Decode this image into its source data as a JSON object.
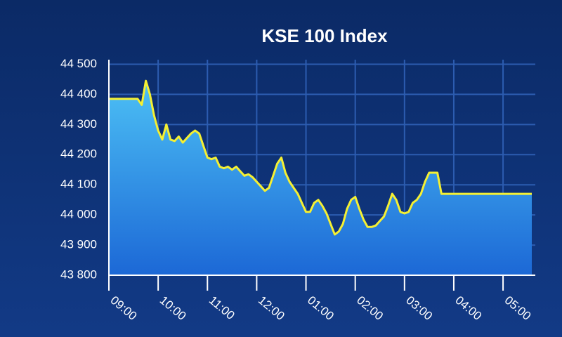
{
  "chart_data": {
    "type": "area",
    "title": "KSE 100 Index",
    "x": [
      "09:00",
      "09:35",
      "09:40",
      "09:45",
      "09:50",
      "09:55",
      "10:00",
      "10:05",
      "10:10",
      "10:15",
      "10:20",
      "10:25",
      "10:30",
      "10:35",
      "10:40",
      "10:45",
      "10:50",
      "10:55",
      "11:00",
      "11:05",
      "11:10",
      "11:15",
      "11:20",
      "11:25",
      "11:30",
      "11:35",
      "11:40",
      "11:45",
      "11:50",
      "11:55",
      "12:00",
      "12:05",
      "12:10",
      "12:15",
      "12:20",
      "12:25",
      "12:30",
      "12:35",
      "12:40",
      "12:45",
      "12:50",
      "12:55",
      "01:00",
      "01:05",
      "01:10",
      "01:15",
      "01:20",
      "01:25",
      "01:30",
      "01:35",
      "01:40",
      "01:45",
      "01:50",
      "01:55",
      "02:00",
      "02:05",
      "02:10",
      "02:15",
      "02:20",
      "02:25",
      "02:30",
      "02:35",
      "02:40",
      "02:45",
      "02:50",
      "02:55",
      "03:00",
      "03:05",
      "03:10",
      "03:15",
      "03:20",
      "03:25",
      "03:30",
      "03:35",
      "03:40",
      "03:45",
      "05:35"
    ],
    "series": [
      {
        "name": "KSE 100",
        "color": "#f5f032",
        "fill": "#3a9ee8",
        "values": [
          44385,
          44385,
          44365,
          44445,
          44400,
          44330,
          44280,
          44250,
          44300,
          44250,
          44245,
          44260,
          44240,
          44255,
          44270,
          44280,
          44270,
          44230,
          44190,
          44185,
          44190,
          44160,
          44155,
          44160,
          44150,
          44160,
          44145,
          44130,
          44135,
          44125,
          44110,
          44095,
          44080,
          44090,
          44130,
          44170,
          44190,
          44140,
          44110,
          44090,
          44070,
          44040,
          44010,
          44010,
          44040,
          44050,
          44030,
          44005,
          43970,
          43935,
          43945,
          43970,
          44020,
          44050,
          44060,
          44020,
          43985,
          43960,
          43960,
          43965,
          43980,
          43995,
          44030,
          44070,
          44050,
          44010,
          44005,
          44010,
          44040,
          44050,
          44070,
          44110,
          44140,
          44140,
          44140,
          44070,
          44070
        ]
      }
    ],
    "xlim": [
      "09:00",
      "05:35"
    ],
    "xticks": [
      "09:00",
      "10:00",
      "11:00",
      "12:00",
      "01:00",
      "02:00",
      "03:00",
      "04:00",
      "05:00"
    ],
    "ylim": [
      43800,
      44515
    ],
    "yticks": [
      {
        "value": 43800,
        "label": "43 800"
      },
      {
        "value": 43900,
        "label": "43 900"
      },
      {
        "value": 44000,
        "label": "44 000"
      },
      {
        "value": 44100,
        "label": "44 100"
      },
      {
        "value": 44200,
        "label": "44 200"
      },
      {
        "value": 44300,
        "label": "44 300"
      },
      {
        "value": 44400,
        "label": "44 400"
      },
      {
        "value": 44500,
        "label": "44 500"
      }
    ],
    "grid": true
  }
}
